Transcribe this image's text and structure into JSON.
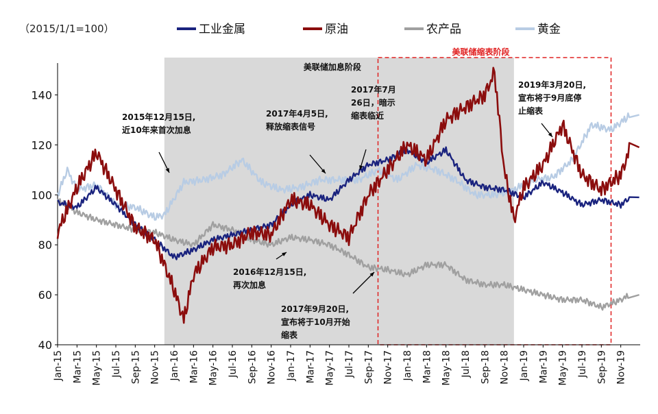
{
  "chart_data": {
    "type": "line",
    "unit_label": "（2015/1/1=100）",
    "ylim": [
      40,
      150
    ],
    "yticks": [
      40,
      60,
      80,
      100,
      120,
      140
    ],
    "x_range": [
      "2015-01",
      "2019-12"
    ],
    "xticks": [
      "Jan-15",
      "Mar-15",
      "May-15",
      "Jul-15",
      "Sep-15",
      "Nov-15",
      "Jan-16",
      "Mar-16",
      "May-16",
      "Jul-16",
      "Sep-16",
      "Nov-16",
      "Jan-17",
      "Mar-17",
      "May-17",
      "Jul-17",
      "Sep-17",
      "Nov-17",
      "Jan-18",
      "Mar-18",
      "May-18",
      "Jul-18",
      "Sep-18",
      "Nov-18",
      "Jan-19",
      "Mar-19",
      "May-19",
      "Jul-19",
      "Sep-19",
      "Nov-19"
    ],
    "grid": false,
    "legend_position": "top",
    "series": [
      {
        "name": "工业金属",
        "color": "#1a237e",
        "x": [
          "2015-01",
          "2015-03",
          "2015-05",
          "2015-07",
          "2015-09",
          "2015-11",
          "2016-01",
          "2016-03",
          "2016-05",
          "2016-07",
          "2016-09",
          "2016-11",
          "2017-01",
          "2017-03",
          "2017-05",
          "2017-07",
          "2017-09",
          "2017-11",
          "2018-01",
          "2018-03",
          "2018-05",
          "2018-07",
          "2018-09",
          "2018-11",
          "2019-01",
          "2019-03",
          "2019-05",
          "2019-07",
          "2019-09",
          "2019-11",
          "2019-12"
        ],
        "values": [
          97,
          95,
          103,
          96,
          88,
          82,
          75,
          78,
          82,
          84,
          86,
          88,
          96,
          100,
          98,
          106,
          112,
          114,
          118,
          113,
          118,
          106,
          103,
          102,
          99,
          105,
          101,
          96,
          98,
          96,
          99
        ]
      },
      {
        "name": "原油",
        "color": "#8b0d0d",
        "x": [
          "2015-01",
          "2015-03",
          "2015-05",
          "2015-07",
          "2015-09",
          "2015-11",
          "2016-01",
          "2016-02",
          "2016-03",
          "2016-05",
          "2016-07",
          "2016-09",
          "2016-11",
          "2017-01",
          "2017-03",
          "2017-05",
          "2017-07",
          "2017-09",
          "2017-11",
          "2018-01",
          "2018-03",
          "2018-05",
          "2018-07",
          "2018-09",
          "2018-10",
          "2018-11",
          "2018-12",
          "2019-01",
          "2019-03",
          "2019-05",
          "2019-07",
          "2019-09",
          "2019-11",
          "2019-12"
        ],
        "values": [
          85,
          103,
          117,
          102,
          87,
          82,
          62,
          50,
          68,
          79,
          80,
          85,
          84,
          98,
          96,
          88,
          83,
          100,
          110,
          120,
          114,
          130,
          135,
          140,
          149,
          110,
          90,
          103,
          112,
          128,
          108,
          102,
          108,
          119
        ]
      },
      {
        "name": "农产品",
        "color": "#a0a0a0",
        "x": [
          "2015-01",
          "2015-03",
          "2015-05",
          "2015-07",
          "2015-09",
          "2015-11",
          "2016-01",
          "2016-03",
          "2016-05",
          "2016-07",
          "2016-09",
          "2016-11",
          "2017-01",
          "2017-03",
          "2017-05",
          "2017-07",
          "2017-09",
          "2017-11",
          "2018-01",
          "2018-03",
          "2018-05",
          "2018-07",
          "2018-09",
          "2018-11",
          "2019-01",
          "2019-03",
          "2019-05",
          "2019-07",
          "2019-09",
          "2019-11",
          "2019-12"
        ],
        "values": [
          98,
          93,
          90,
          88,
          86,
          85,
          82,
          80,
          88,
          86,
          82,
          80,
          83,
          82,
          80,
          76,
          71,
          70,
          68,
          72,
          72,
          66,
          64,
          64,
          62,
          60,
          58,
          58,
          55,
          58,
          60
        ]
      },
      {
        "name": "黄金",
        "color": "#b8cce4",
        "x": [
          "2015-01",
          "2015-02",
          "2015-03",
          "2015-05",
          "2015-07",
          "2015-09",
          "2015-11",
          "2015-12",
          "2016-02",
          "2016-04",
          "2016-06",
          "2016-08",
          "2016-10",
          "2016-12",
          "2017-02",
          "2017-04",
          "2017-06",
          "2017-08",
          "2017-10",
          "2017-12",
          "2018-02",
          "2018-04",
          "2018-06",
          "2018-08",
          "2018-10",
          "2018-12",
          "2019-02",
          "2019-04",
          "2019-06",
          "2019-08",
          "2019-10",
          "2019-12"
        ],
        "values": [
          100,
          110,
          102,
          104,
          96,
          95,
          91,
          92,
          105,
          106,
          108,
          114,
          105,
          102,
          103,
          106,
          106,
          106,
          110,
          106,
          112,
          110,
          106,
          100,
          100,
          102,
          106,
          107,
          114,
          128,
          126,
          132
        ]
      }
    ],
    "regions": [
      {
        "label": "美联储加息阶段",
        "start": "2015-12",
        "end": "2018-12",
        "style": "shaded"
      },
      {
        "label": "美联储缩表阶段",
        "start": "2017-10",
        "end": "2019-10",
        "style": "dashed-box"
      }
    ],
    "annotations": [
      {
        "lines": [
          "2015年12月15日,",
          "近10年来首次加息"
        ],
        "date": "2015-12"
      },
      {
        "lines": [
          "2016年12月15日,",
          "再次加息"
        ],
        "date": "2016-12"
      },
      {
        "lines": [
          "2017年4月5日,",
          "释放缩表信号"
        ],
        "date": "2017-04"
      },
      {
        "lines": [
          "2017年7月",
          "26日，暗示",
          "缩表临近"
        ],
        "date": "2017-07"
      },
      {
        "lines": [
          "2017年9月20日,",
          "宣布将于10月开始",
          "缩表"
        ],
        "date": "2017-09"
      },
      {
        "lines": [
          "2019年3月20日,",
          "宣布将于9月底停",
          "止缩表"
        ],
        "date": "2019-03"
      }
    ]
  }
}
